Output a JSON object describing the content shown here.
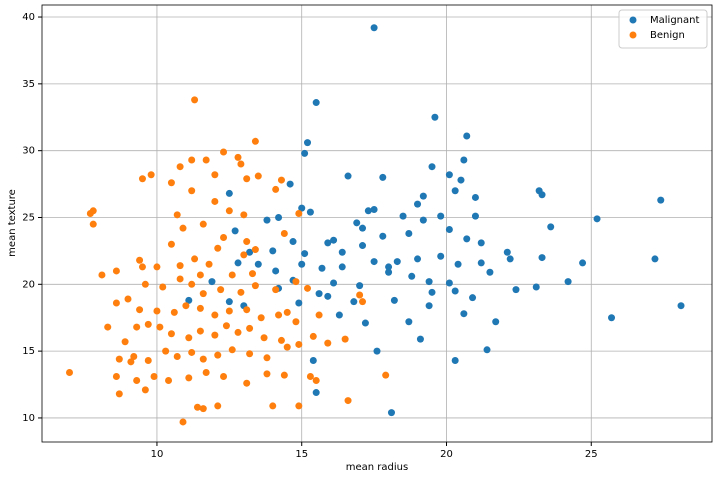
{
  "chart_data": {
    "type": "scatter",
    "xlabel": "mean radius",
    "ylabel": "mean texture",
    "xlim": [
      6.03,
      29.17
    ],
    "ylim": [
      8.2,
      40.9
    ],
    "xticks": [
      10,
      15,
      20,
      25
    ],
    "yticks": [
      10,
      15,
      20,
      25,
      30,
      35,
      40
    ],
    "grid": true,
    "legend": "upper right",
    "series": [
      {
        "name": "Malignant",
        "color": "#1f77b4",
        "x": [
          17.5,
          15.5,
          19.6,
          20.7,
          15.2,
          15.1,
          20.6,
          19.5,
          20.1,
          16.6,
          17.8,
          20.5,
          14.6,
          23.2,
          20.3,
          12.5,
          19.2,
          23.3,
          27.4,
          21.0,
          17.3,
          17.5,
          15.0,
          19.0,
          25.2,
          18.5,
          19.8,
          14.2,
          13.8,
          15.3,
          16.9,
          17.1,
          21.0,
          23.6,
          20.1,
          12.7,
          15.9,
          17.8,
          19.2,
          18.7,
          16.1,
          14.7,
          22.1,
          20.7,
          21.2,
          23.3,
          27.2,
          24.7,
          21.2,
          22.2,
          20.4,
          19.8,
          18.3,
          17.5,
          16.4,
          15.7,
          14.1,
          13.5,
          18.0,
          18.8,
          19.0,
          20.1,
          19.5,
          20.3,
          21.5,
          24.2,
          23.1,
          22.4,
          20.6,
          21.7,
          25.7,
          28.1,
          21.4,
          20.3,
          18.1,
          17.6,
          19.1,
          18.7,
          17.2,
          15.5,
          15.4,
          16.8,
          17.0,
          18.2,
          19.4,
          16.1,
          15.6,
          15.9,
          14.7,
          14.2,
          14.0,
          13.2,
          15.1,
          15.0,
          16.4,
          17.1,
          18.0,
          19.4,
          20.9,
          16.3,
          14.9,
          11.9,
          12.5,
          13.0,
          11.1,
          12.8
        ],
        "values": [
          39.2,
          33.6,
          32.5,
          31.1,
          30.6,
          29.8,
          29.3,
          28.8,
          28.2,
          28.1,
          28.0,
          27.8,
          27.5,
          27.0,
          27.0,
          26.8,
          26.6,
          26.7,
          26.3,
          26.5,
          25.5,
          25.6,
          25.7,
          26.0,
          24.9,
          25.1,
          25.1,
          25.0,
          24.8,
          25.4,
          24.6,
          24.2,
          25.1,
          24.3,
          24.1,
          24.0,
          23.1,
          23.6,
          24.8,
          23.8,
          23.3,
          23.2,
          22.4,
          23.4,
          23.1,
          22.0,
          21.9,
          21.6,
          21.6,
          21.9,
          21.5,
          22.1,
          21.7,
          21.7,
          21.3,
          21.2,
          21.0,
          21.5,
          20.9,
          20.6,
          21.9,
          20.1,
          19.4,
          19.5,
          20.9,
          20.2,
          19.8,
          19.6,
          17.8,
          17.2,
          17.5,
          18.4,
          15.1,
          14.3,
          10.4,
          15.0,
          15.9,
          17.2,
          17.1,
          11.9,
          14.3,
          18.7,
          19.9,
          18.8,
          18.4,
          20.1,
          19.3,
          19.1,
          20.3,
          19.7,
          22.5,
          22.4,
          22.3,
          21.5,
          22.4,
          22.9,
          21.3,
          20.2,
          19.0,
          17.7,
          18.6,
          20.2,
          18.7,
          18.4,
          18.8,
          21.6
        ]
      },
      {
        "name": "Benign",
        "color": "#ff7f0e",
        "x": [
          11.3,
          13.4,
          12.8,
          11.2,
          12.3,
          11.7,
          12.9,
          10.8,
          9.5,
          9.8,
          12.0,
          13.5,
          13.1,
          14.3,
          14.1,
          10.5,
          7.8,
          7.7,
          7.8,
          10.7,
          12.0,
          11.2,
          13.0,
          12.5,
          11.6,
          14.9,
          10.9,
          9.4,
          9.5,
          8.1,
          8.6,
          10.0,
          10.8,
          11.8,
          11.3,
          12.1,
          13.0,
          13.4,
          14.4,
          13.1,
          12.3,
          10.5,
          9.6,
          10.2,
          10.8,
          11.2,
          11.6,
          12.2,
          12.9,
          13.4,
          14.1,
          14.8,
          15.2,
          9.0,
          9.4,
          10.0,
          10.6,
          11.0,
          11.5,
          12.0,
          12.5,
          13.1,
          13.6,
          14.2,
          14.8,
          8.6,
          8.3,
          8.9,
          9.3,
          9.7,
          10.1,
          10.5,
          11.1,
          11.5,
          12.0,
          12.4,
          12.8,
          13.2,
          13.7,
          14.3,
          14.9,
          15.4,
          8.7,
          9.1,
          9.7,
          10.3,
          10.7,
          11.2,
          11.6,
          12.1,
          12.6,
          13.2,
          13.8,
          14.5,
          16.5,
          17.1,
          17.9,
          16.6,
          15.3,
          15.5,
          14.4,
          13.8,
          13.1,
          12.3,
          11.7,
          11.1,
          10.4,
          9.9,
          9.3,
          8.6,
          9.6,
          8.7,
          10.9,
          11.4,
          11.6,
          12.1,
          14.0,
          14.9,
          6.98,
          9.2,
          14.5,
          15.6,
          15.9,
          17.0,
          13.3,
          12.6,
          11.5
        ],
        "values": [
          33.8,
          30.7,
          29.5,
          29.3,
          29.9,
          29.3,
          29.0,
          28.8,
          27.9,
          28.2,
          28.2,
          28.1,
          27.9,
          27.8,
          27.1,
          27.6,
          25.5,
          25.3,
          24.5,
          25.2,
          26.2,
          27.0,
          25.2,
          25.5,
          24.5,
          25.3,
          24.2,
          21.8,
          21.3,
          20.7,
          21.0,
          21.3,
          21.4,
          21.5,
          21.9,
          22.7,
          22.2,
          22.6,
          23.8,
          23.2,
          23.5,
          23.0,
          20.0,
          19.8,
          20.4,
          20.0,
          19.3,
          19.6,
          19.4,
          19.9,
          19.6,
          20.2,
          19.7,
          18.9,
          18.1,
          18.0,
          17.9,
          18.4,
          18.2,
          17.7,
          18.0,
          18.1,
          17.5,
          17.7,
          17.2,
          18.6,
          16.8,
          15.7,
          16.8,
          17.0,
          16.8,
          16.3,
          16.0,
          16.5,
          16.2,
          16.9,
          16.4,
          16.7,
          16.0,
          15.8,
          15.5,
          16.1,
          14.4,
          14.2,
          14.3,
          15.0,
          14.6,
          14.9,
          14.4,
          14.7,
          15.1,
          14.8,
          14.5,
          15.3,
          15.9,
          18.7,
          13.2,
          11.3,
          13.1,
          12.8,
          13.2,
          13.3,
          12.6,
          13.1,
          13.4,
          13.0,
          12.8,
          13.1,
          12.8,
          13.1,
          12.1,
          11.8,
          9.7,
          10.8,
          10.7,
          10.9,
          10.9,
          10.9,
          13.4,
          14.6,
          17.9,
          17.7,
          15.6,
          19.2,
          20.8,
          20.7,
          20.7
        ]
      }
    ]
  }
}
